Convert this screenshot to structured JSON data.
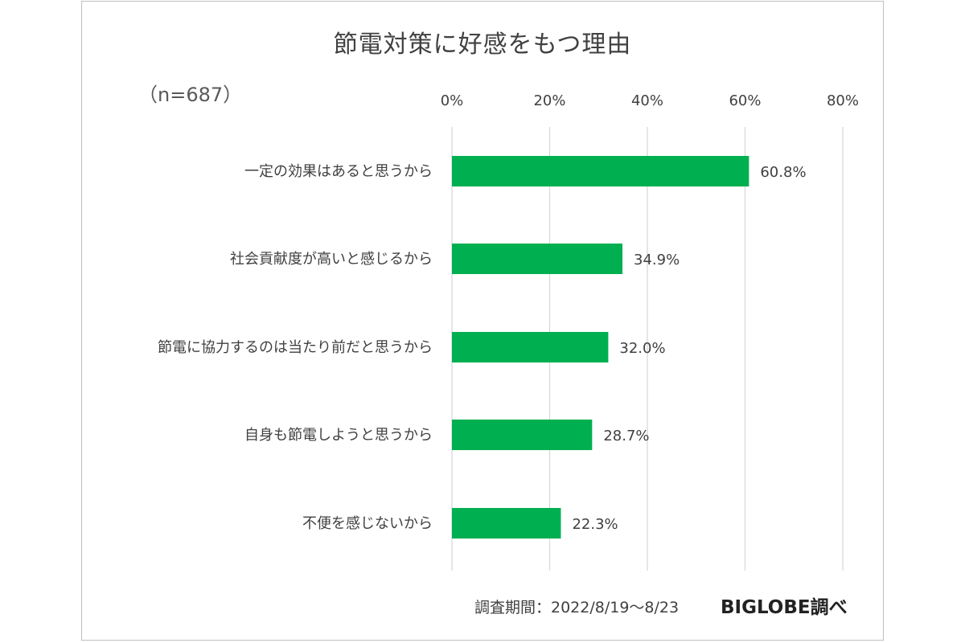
{
  "chart_data": {
    "type": "bar",
    "orientation": "horizontal",
    "title": "節電対策に好感をもつ理由",
    "sample_note": "（n=687）",
    "categories": [
      "一定の効果はあると思うから",
      "社会貢献度が高いと感じるから",
      "節電に協力するのは当たり前だと思うから",
      "自身も節電しようと思うから",
      "不便を感じないから"
    ],
    "values": [
      60.8,
      34.9,
      32.0,
      28.7,
      22.3
    ],
    "data_labels": [
      "60.8%",
      "34.9%",
      "32.0%",
      "28.7%",
      "22.3%"
    ],
    "xlim": [
      0,
      80
    ],
    "ticks": [
      0,
      20,
      40,
      60,
      80
    ],
    "tick_labels": [
      "0%",
      "20%",
      "40%",
      "60%",
      "80%"
    ],
    "x_axis_position": "top",
    "grid": true,
    "bar_color": "#00b050",
    "grid_color": "#d9d9d9"
  },
  "footer": {
    "survey_period": "調査期間：2022/8/19～8/23",
    "source": "BIGLOBE調べ"
  }
}
